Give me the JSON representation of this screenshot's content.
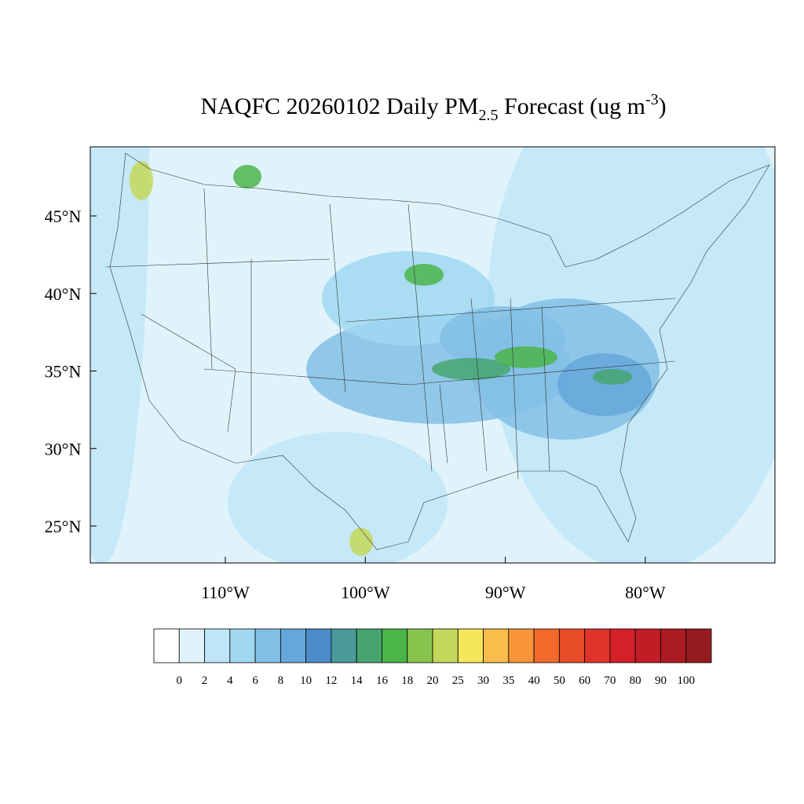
{
  "title": {
    "main": "NAQFC 20260102 Daily PM",
    "subscript": "2.5",
    "units": " Forecast (ug m",
    "superscript": "-3",
    "close": ")"
  },
  "map": {
    "lat_ticks": [
      {
        "value": 45,
        "label": "45°N"
      },
      {
        "value": 40,
        "label": "40°N"
      },
      {
        "value": 35,
        "label": "35°N"
      },
      {
        "value": 30,
        "label": "30°N"
      },
      {
        "value": 25,
        "label": "25°N"
      }
    ],
    "lon_ticks": [
      {
        "value": -110,
        "label": "110°W"
      },
      {
        "value": -100,
        "label": "100°W"
      },
      {
        "value": -90,
        "label": "90°W"
      },
      {
        "value": -80,
        "label": "80°W"
      }
    ]
  },
  "colorbar": {
    "levels": [
      0,
      2,
      4,
      6,
      8,
      10,
      12,
      14,
      16,
      18,
      20,
      25,
      30,
      35,
      40,
      50,
      60,
      70,
      80,
      90,
      100
    ],
    "colors": [
      "#ffffff",
      "#e0f3fb",
      "#bfe6f7",
      "#a0d8f2",
      "#83bfe5",
      "#65a7da",
      "#4a8bc8",
      "#4a9a9a",
      "#46a56e",
      "#4bb54a",
      "#86c44e",
      "#c5d75a",
      "#f5e65a",
      "#f8bd4a",
      "#f79538",
      "#f26a2b",
      "#e84d2a",
      "#e0342a",
      "#d42029",
      "#c21c26",
      "#ad1b22",
      "#951b1e"
    ]
  }
}
